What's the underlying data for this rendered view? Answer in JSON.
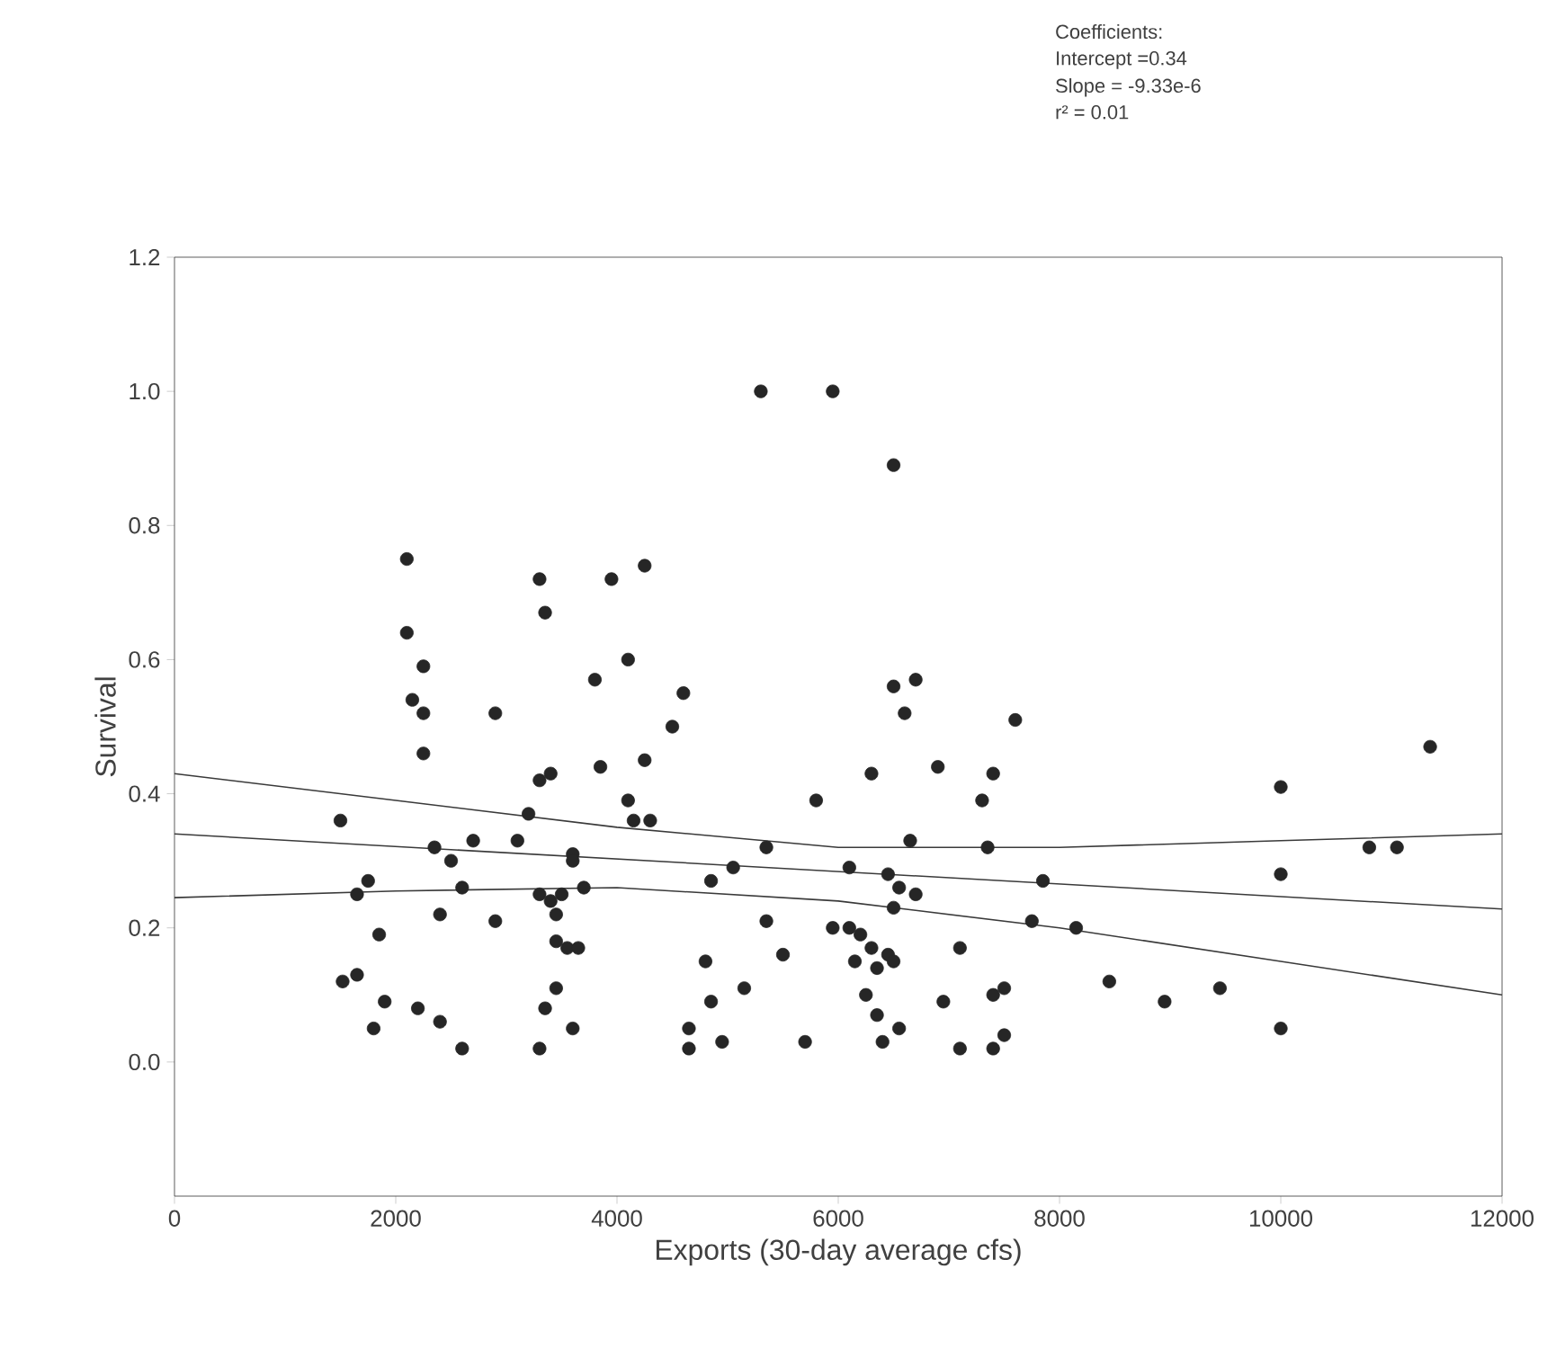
{
  "chart_data": {
    "type": "scatter",
    "xlabel": "Exports (30-day average cfs)",
    "ylabel": "Survival",
    "annotations": [
      "Coefficients:",
      "Intercept =0.34",
      "Slope = -9.33e-6",
      "r² = 0.01"
    ],
    "xlim": [
      0,
      12000
    ],
    "xticks": [
      0,
      2000,
      4000,
      6000,
      8000,
      10000,
      12000
    ],
    "ylim": [
      -0.2,
      1.2
    ],
    "yticks": [
      {
        "value": 0,
        "label": "0.0"
      },
      {
        "value": 0.2,
        "label": "0.2"
      },
      {
        "value": 0.4,
        "label": "0.4"
      },
      {
        "value": 0.6,
        "label": "0.6"
      },
      {
        "value": 0.8,
        "label": "0.8"
      },
      {
        "value": 1.0,
        "label": "1.0"
      },
      {
        "value": 1.2,
        "label": "1.2"
      }
    ],
    "series": [
      {
        "color": "#262626",
        "marker": "circle",
        "x": [
          1500,
          1520,
          1650,
          1650,
          1750,
          1800,
          1850,
          1900,
          2100,
          2100,
          2150,
          2200,
          2250,
          2250,
          2250,
          2350,
          2400,
          2400,
          2500,
          2600,
          2600,
          2700,
          2900,
          2900,
          3100,
          3200,
          3300,
          3300,
          3300,
          3350,
          3300,
          3350,
          3400,
          3400,
          3450,
          3450,
          3450,
          3500,
          3550,
          3600,
          3600,
          3600,
          3650,
          3700,
          3800,
          3850,
          3950,
          4100,
          4100,
          4150,
          4250,
          4250,
          4300,
          4500,
          4600,
          4650,
          4650,
          4800,
          4850,
          4850,
          4950,
          5050,
          5150,
          5300,
          5350,
          5350,
          5500,
          5700,
          5800,
          5950,
          5950,
          6100,
          6100,
          6150,
          6200,
          6250,
          6300,
          6300,
          6350,
          6350,
          6400,
          6450,
          6450,
          6500,
          6500,
          6500,
          6500,
          6550,
          6550,
          6600,
          6650,
          6700,
          6700,
          6900,
          6950,
          7100,
          7100,
          7300,
          7350,
          7400,
          7400,
          7400,
          7500,
          7500,
          7600,
          7750,
          7850,
          8150,
          8450,
          8950,
          9450,
          10000,
          10000,
          10000,
          10800,
          11050,
          11350
        ],
        "values": [
          0.36,
          0.12,
          0.13,
          0.25,
          0.27,
          0.05,
          0.19,
          0.09,
          0.64,
          0.75,
          0.54,
          0.08,
          0.59,
          0.52,
          0.46,
          0.32,
          0.22,
          0.06,
          0.3,
          0.26,
          0.02,
          0.33,
          0.52,
          0.21,
          0.33,
          0.37,
          0.72,
          0.42,
          0.25,
          0.67,
          0.02,
          0.08,
          0.43,
          0.24,
          0.22,
          0.18,
          0.11,
          0.25,
          0.17,
          0.31,
          0.3,
          0.05,
          0.17,
          0.26,
          0.57,
          0.44,
          0.72,
          0.6,
          0.39,
          0.36,
          0.74,
          0.45,
          0.36,
          0.5,
          0.55,
          0.05,
          0.02,
          0.15,
          0.27,
          0.09,
          0.03,
          0.29,
          0.11,
          1.0,
          0.32,
          0.21,
          0.16,
          0.03,
          0.39,
          1.0,
          0.2,
          0.29,
          0.2,
          0.15,
          0.19,
          0.1,
          0.43,
          0.17,
          0.14,
          0.07,
          0.03,
          0.28,
          0.16,
          0.89,
          0.56,
          0.23,
          0.15,
          0.26,
          0.05,
          0.52,
          0.33,
          0.25,
          0.57,
          0.44,
          0.09,
          0.17,
          0.02,
          0.39,
          0.32,
          0.43,
          0.02,
          0.1,
          0.11,
          0.04,
          0.51,
          0.21,
          0.27,
          0.2,
          0.12,
          0.09,
          0.11,
          0.41,
          0.28,
          0.05,
          0.32,
          0.32,
          0.47
        ]
      },
      {
        "type": "line",
        "color": "#3a3a3a",
        "marker": "none",
        "x": [
          0,
          12000
        ],
        "values": [
          0.34,
          0.228
        ]
      },
      {
        "type": "line",
        "color": "#3a3a3a",
        "marker": "none",
        "x": [
          0,
          2000,
          4000,
          6000,
          8000,
          10000,
          12000
        ],
        "values": [
          0.43,
          0.39,
          0.35,
          0.32,
          0.32,
          0.33,
          0.34
        ]
      },
      {
        "type": "line",
        "color": "#3a3a3a",
        "marker": "none",
        "x": [
          0,
          2000,
          4000,
          6000,
          8000,
          10000,
          12000
        ],
        "values": [
          0.245,
          0.255,
          0.26,
          0.24,
          0.2,
          0.15,
          0.1
        ]
      }
    ]
  }
}
